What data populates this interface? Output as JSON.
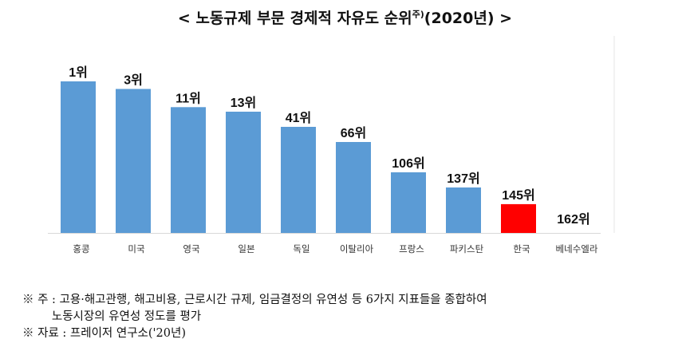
{
  "chart_data": {
    "type": "bar",
    "title": "< 노동규제 부문 경제적 자유도 순위",
    "title_sup": "주)",
    "title_suffix": "(2020년) >",
    "categories": [
      "홍콩",
      "미국",
      "영국",
      "일본",
      "독일",
      "이탈리아",
      "프랑스",
      "파키스탄",
      "한국",
      "베네수엘라"
    ],
    "data_labels": [
      "1위",
      "3위",
      "11위",
      "13위",
      "41위",
      "66위",
      "106위",
      "137위",
      "145위",
      "162위"
    ],
    "ranks": [
      1,
      3,
      11,
      13,
      41,
      66,
      106,
      137,
      145,
      162
    ],
    "values": [
      10.0,
      9.5,
      8.3,
      8.0,
      7.0,
      6.0,
      4.0,
      3.0,
      1.9,
      0
    ],
    "ylim": [
      0,
      10
    ],
    "xlabel": "",
    "ylabel": "",
    "grid": false,
    "bar_color": "#5b9bd5",
    "highlight_color": "#ff0000",
    "highlight_index": 8
  },
  "notes": {
    "note1": "※ 주 : 고용·해고관행, 해고비용, 근로시간 규제, 임금결정의 유연성 등 6가지 지표들을 종합하여",
    "note1b": "        노동시장의 유연성 정도를 평가",
    "source": "※ 자료 : 프레이저 연구소('20년)"
  }
}
